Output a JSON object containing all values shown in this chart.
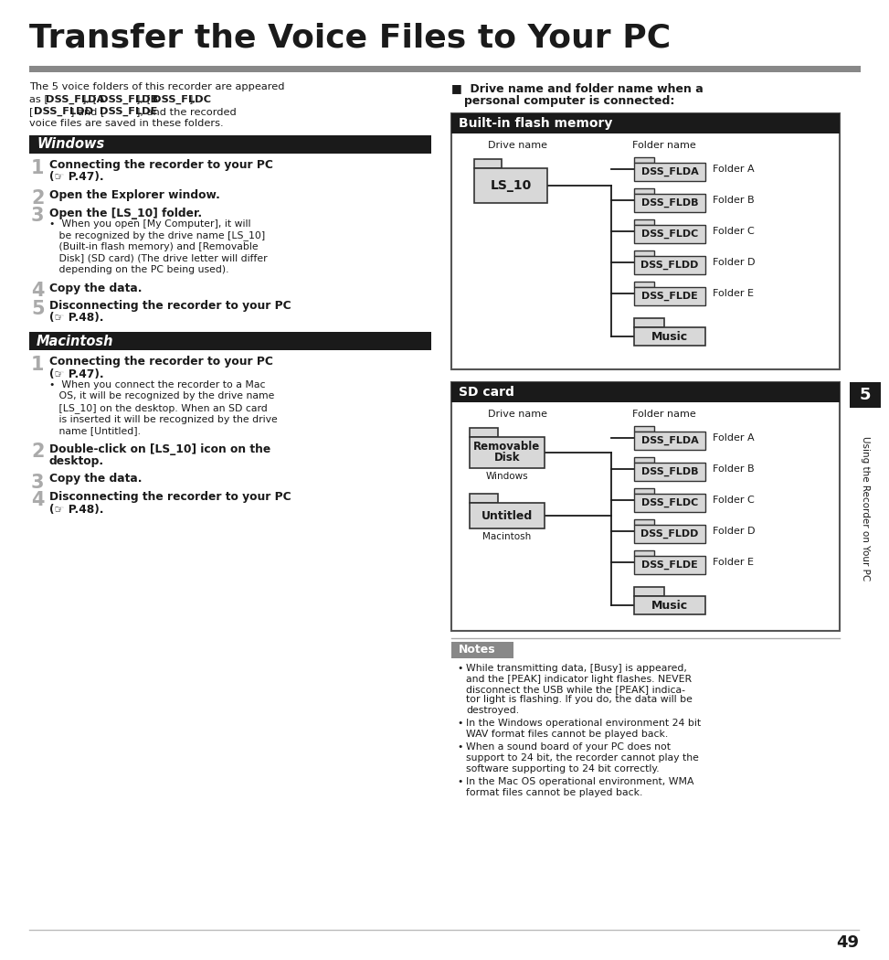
{
  "title": "Transfer the Voice Files to Your PC",
  "bg_color": "#ffffff",
  "page_number": "49",
  "chapter_number": "5",
  "chapter_label": "Using the Recorder on Your PC",
  "windows_section_title": "Windows",
  "mac_section_title": "Macintosh",
  "builtin_title": "Built-in flash memory",
  "builtin_drive": "LS_10",
  "builtin_folders": [
    "DSS_FLDA",
    "DSS_FLDB",
    "DSS_FLDC",
    "DSS_FLDD",
    "DSS_FLDE"
  ],
  "builtin_folder_labels": [
    "Folder A",
    "Folder B",
    "Folder C",
    "Folder D",
    "Folder E"
  ],
  "builtin_music": "Music",
  "sdcard_title": "SD card",
  "sdcard_drives": [
    "Removable\nDisk",
    "Untitled"
  ],
  "sdcard_drive_labels": [
    "Windows",
    "Macintosh"
  ],
  "sdcard_folders": [
    "DSS_FLDA",
    "DSS_FLDB",
    "DSS_FLDC",
    "DSS_FLDD",
    "DSS_FLDE"
  ],
  "sdcard_folder_labels": [
    "Folder A",
    "Folder B",
    "Folder C",
    "Folder D",
    "Folder E"
  ],
  "sdcard_music": "Music",
  "notes_title": "Notes",
  "folder_fc": "#d8d8d8",
  "folder_ec": "#333333",
  "black": "#1a1a1a",
  "gray_num": "#aaaaaa",
  "white": "#ffffff",
  "notes_bg": "#e8e8e8",
  "sidebar_bg": "#1a1a1a"
}
